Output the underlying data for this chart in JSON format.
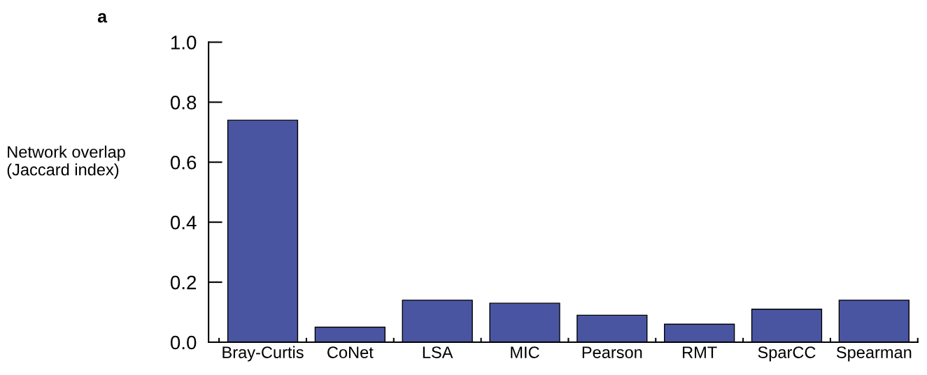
{
  "chart_data": {
    "type": "bar",
    "ylabel": "Network overlap\n(Jaccard index)",
    "annotations": [
      "a"
    ],
    "categories": [
      "Bray-Curtis",
      "CoNet",
      "LSA",
      "MIC",
      "Pearson",
      "RMT",
      "SparCC",
      "Spearman"
    ],
    "values": [
      0.74,
      0.05,
      0.14,
      0.13,
      0.09,
      0.06,
      0.11,
      0.14
    ],
    "color": "#4a55a2",
    "ylim": [
      0,
      1.0
    ],
    "yticks": [
      {
        "value": 0,
        "label": "0.0"
      },
      0.2,
      0.4,
      0.6,
      0.8,
      {
        "value": 1.0,
        "label": "1.0"
      }
    ],
    "grid": false,
    "legend": false
  }
}
